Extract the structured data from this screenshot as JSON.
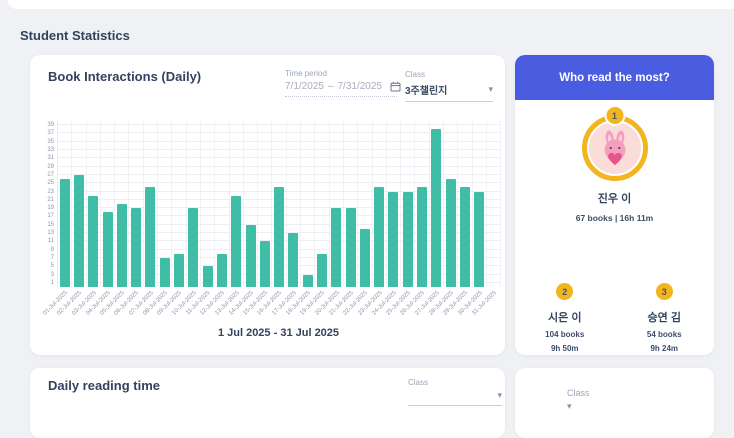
{
  "page": {
    "heading": "Student Statistics"
  },
  "book_interactions": {
    "title": "Book Interactions (Daily)",
    "time_period": {
      "label": "Time period",
      "start": "7/1/2025",
      "separator": "–",
      "end": "7/31/2025"
    },
    "class_select": {
      "label": "Class",
      "value": "3주챌린지"
    }
  },
  "chart_data": {
    "type": "bar",
    "title": "Book Interactions (Daily)",
    "categories": [
      "01-Jul-2025",
      "02-Jul-2025",
      "03-Jul-2025",
      "04-Jul-2025",
      "05-Jul-2025",
      "06-Jul-2025",
      "07-Jul-2025",
      "08-Jul-2025",
      "09-Jul-2025",
      "10-Jul-2025",
      "11-Jul-2025",
      "12-Jul-2025",
      "13-Jul-2025",
      "14-Jul-2025",
      "15-Jul-2025",
      "16-Jul-2025",
      "17-Jul-2025",
      "18-Jul-2025",
      "19-Jul-2025",
      "20-Jul-2025",
      "21-Jul-2025",
      "22-Jul-2025",
      "23-Jul-2025",
      "24-Jul-2025",
      "25-Jul-2025",
      "26-Jul-2025",
      "27-Jul-2025",
      "28-Jul-2025",
      "29-Jul-2025",
      "30-Jul-2025",
      "31-Jul-2025"
    ],
    "values": [
      26,
      27,
      22,
      18,
      20,
      19,
      24,
      7,
      8,
      19,
      5,
      8,
      22,
      15,
      11,
      24,
      13,
      3,
      8,
      19,
      19,
      14,
      24,
      23,
      23,
      24,
      38,
      26,
      24,
      23,
      0
    ],
    "yticks": [
      1,
      3,
      5,
      7,
      9,
      11,
      13,
      15,
      17,
      19,
      21,
      23,
      25,
      27,
      29,
      31,
      33,
      35,
      37,
      39
    ],
    "ylim": [
      0,
      40
    ],
    "grid": true,
    "legend": "none",
    "bar_color": "#3fbda7",
    "caption": "1 Jul 2025 - 31 Jul 2025"
  },
  "leaderboard": {
    "header": "Who read the most?",
    "champion": {
      "rank": "1",
      "name": "진우 이",
      "stats": "67 books | 16h 11m"
    },
    "runners": [
      {
        "rank": "2",
        "name": "시은 이",
        "books": "104 books",
        "time": "9h 50m"
      },
      {
        "rank": "3",
        "name": "승연 김",
        "books": "54 books",
        "time": "9h 24m"
      }
    ]
  },
  "daily_reading": {
    "title": "Daily reading time",
    "class_select": {
      "label": "Class"
    }
  },
  "bottom_right_card": {
    "class_select": {
      "label": "Class"
    }
  },
  "colors": {
    "background": "#eff1f4",
    "bar_teal": "#3fbda7",
    "header_blue": "#4a5ce0",
    "badge_gold": "#f2b51f",
    "navy_text": "#33435e"
  }
}
